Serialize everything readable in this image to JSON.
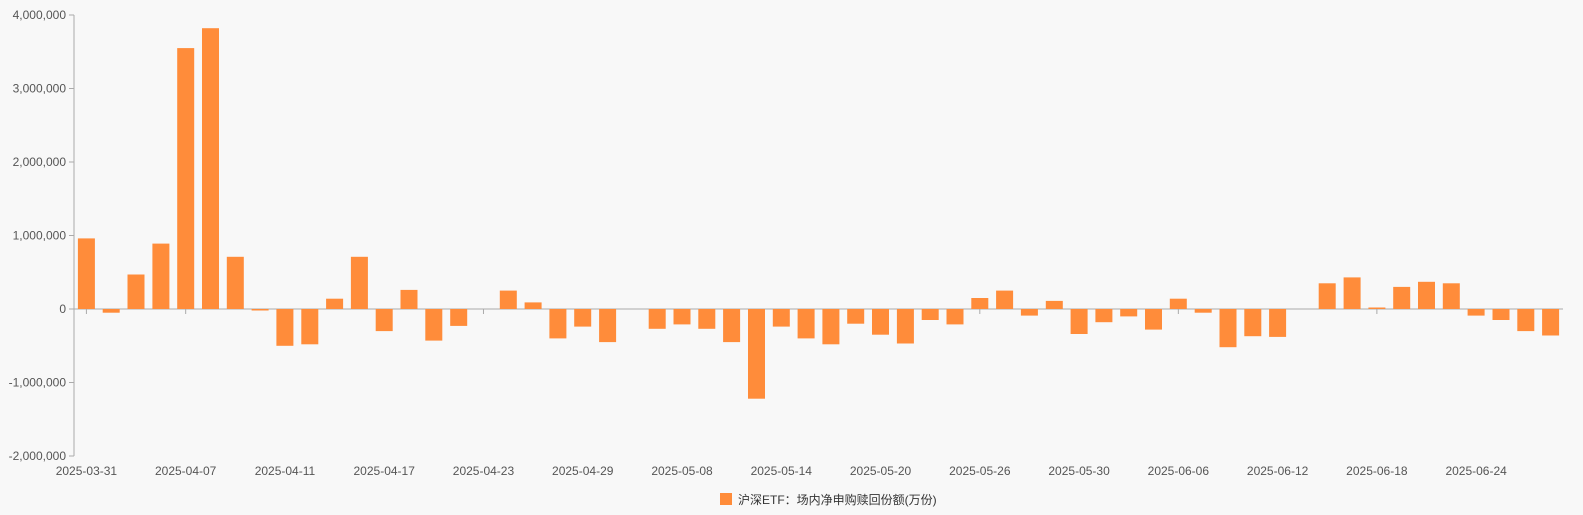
{
  "chart_data": {
    "type": "bar",
    "colors": {
      "bar": "#ff8c3a",
      "axis": "#aaaaaa",
      "text": "#555555",
      "background": "#f8f8f8"
    },
    "legend": {
      "position": "bottom-center",
      "entries": [
        "沪深ETF：场内净申购赎回份额(万份)"
      ]
    },
    "grid": false,
    "ylim": [
      -2000000,
      4000000
    ],
    "y_ticks": [
      {
        "value": 4000000,
        "label": "4,000,000"
      },
      {
        "value": 3000000,
        "label": "3,000,000"
      },
      {
        "value": 2000000,
        "label": "2,000,000"
      },
      {
        "value": 1000000,
        "label": "1,000,000"
      },
      {
        "value": 0,
        "label": "0"
      },
      {
        "value": -1000000,
        "label": "-1,000,000"
      },
      {
        "value": -2000000,
        "label": "-2,000,000"
      }
    ],
    "x_tick_labels": [
      "2025-03-31",
      "2025-04-07",
      "2025-04-11",
      "2025-04-17",
      "2025-04-23",
      "2025-04-29",
      "2025-05-08",
      "2025-05-14",
      "2025-05-20",
      "2025-05-26",
      "2025-05-30",
      "2025-06-06",
      "2025-06-12",
      "2025-06-18",
      "2025-06-24"
    ],
    "series": [
      {
        "name": "沪深ETF：场内净申购赎回份额(万份)",
        "values": [
          960000,
          -50000,
          470000,
          890000,
          3550000,
          3820000,
          710000,
          -20000,
          -500000,
          -480000,
          140000,
          710000,
          -300000,
          260000,
          -430000,
          -230000,
          0,
          250000,
          90000,
          -400000,
          -240000,
          -450000,
          0,
          -270000,
          -210000,
          -270000,
          -450000,
          -1220000,
          -240000,
          -400000,
          -480000,
          -200000,
          -350000,
          -470000,
          -150000,
          -210000,
          150000,
          250000,
          -90000,
          110000,
          -340000,
          -180000,
          -100000,
          -280000,
          140000,
          -50000,
          -520000,
          -370000,
          -380000,
          0,
          350000,
          430000,
          20000,
          300000,
          370000,
          350000,
          -90000,
          -150000,
          -300000,
          -360000
        ]
      }
    ]
  }
}
